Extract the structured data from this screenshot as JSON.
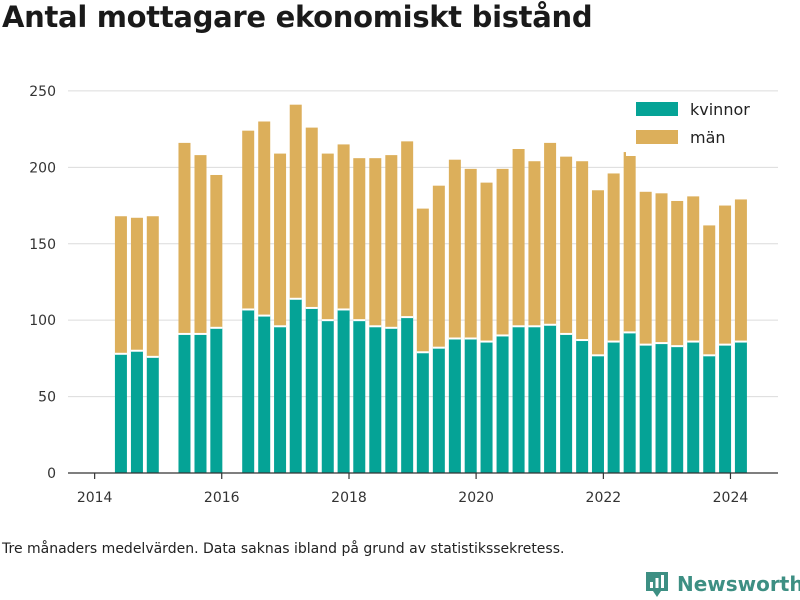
{
  "title": "Antal mottagare ekonomiskt bistånd",
  "footnote": "Tre månaders medelvärden. Data saknas ibland på grund av statistikssekretess.",
  "brand": {
    "name": "Newsworthy",
    "color": "#3d8f83"
  },
  "chart_data": {
    "type": "bar",
    "stacked": true,
    "title": "",
    "xlabel": "",
    "ylabel": "",
    "x_ticks": [
      "2014",
      "2016",
      "2018",
      "2020",
      "2022",
      "2024"
    ],
    "y_ticks": [
      "0",
      "50",
      "100",
      "150",
      "200",
      "250"
    ],
    "xlim": [
      "2013-08-01",
      "2024-09-30"
    ],
    "ylim": [
      0,
      265
    ],
    "grid": true,
    "legend_position": "top-right",
    "x": [
      "2014-06-01",
      "2014-09-01",
      "2014-12-01",
      "2015-06-01",
      "2015-09-01",
      "2015-12-01",
      "2016-06-01",
      "2016-09-01",
      "2016-12-01",
      "2017-03-01",
      "2017-06-01",
      "2017-09-01",
      "2017-12-01",
      "2018-03-01",
      "2018-06-01",
      "2018-09-01",
      "2018-12-01",
      "2019-03-01",
      "2019-06-01",
      "2019-09-01",
      "2019-12-01",
      "2020-03-01",
      "2020-06-01",
      "2020-09-01",
      "2020-12-01",
      "2021-03-01",
      "2021-06-01",
      "2021-09-01",
      "2021-12-01",
      "2022-03-01",
      "2022-06-01",
      "2022-09-01",
      "2022-12-01",
      "2023-03-01",
      "2023-06-01",
      "2023-09-01",
      "2023-12-01",
      "2024-03-01"
    ],
    "series": [
      {
        "name": "kvinnor",
        "color": "#05a396",
        "values": [
          78,
          80,
          76,
          91,
          91,
          95,
          107,
          103,
          96,
          114,
          108,
          100,
          107,
          100,
          96,
          95,
          102,
          79,
          82,
          88,
          88,
          86,
          90,
          96,
          96,
          97,
          91,
          87,
          77,
          86,
          92,
          84,
          85,
          83,
          86,
          77,
          84,
          86
        ]
      },
      {
        "name": "män",
        "color": "#dcaf5b",
        "values": [
          90,
          87,
          92,
          125,
          117,
          100,
          117,
          127,
          113,
          127,
          118,
          109,
          108,
          106,
          110,
          113,
          115,
          94,
          106,
          117,
          111,
          104,
          109,
          116,
          108,
          119,
          116,
          117,
          108,
          110,
          118,
          100,
          98,
          95,
          95,
          85,
          91,
          93
        ]
      }
    ]
  }
}
